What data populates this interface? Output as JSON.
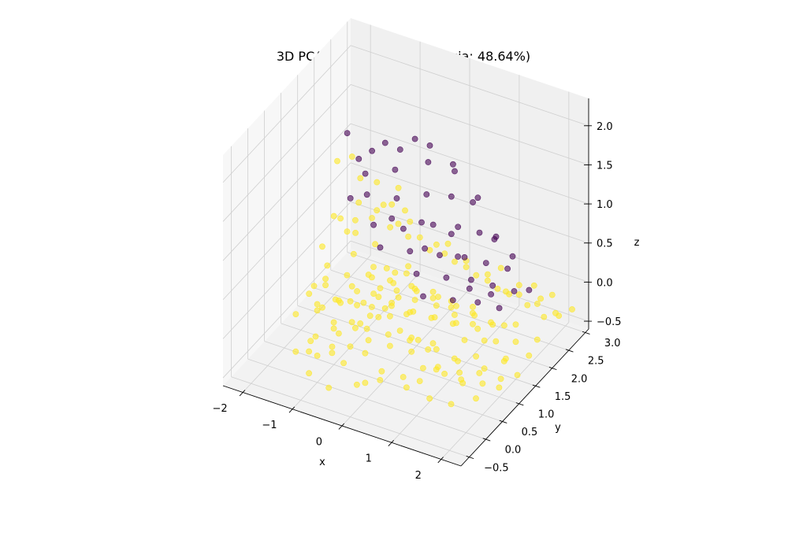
{
  "chart_data": {
    "type": "scatter",
    "projection": "3d",
    "title": "3D PCA (Wyjaśniona wariancja: 48.64%)",
    "xlabel": "x",
    "ylabel": "y",
    "zlabel": "z",
    "xlim": [
      -2.4,
      2.4
    ],
    "ylim": [
      -0.75,
      3.1
    ],
    "zlim": [
      -0.6,
      2.35
    ],
    "x_ticks": [
      {
        "value": -2,
        "label": "−2"
      },
      {
        "value": -1,
        "label": "−1"
      },
      {
        "value": 0,
        "label": "0"
      },
      {
        "value": 1,
        "label": "1"
      },
      {
        "value": 2,
        "label": "2"
      }
    ],
    "y_ticks": [
      {
        "value": -0.5,
        "label": "−0.5"
      },
      {
        "value": 0.0,
        "label": "0.0"
      },
      {
        "value": 0.5,
        "label": "0.5"
      },
      {
        "value": 1.0,
        "label": "1.0"
      },
      {
        "value": 1.5,
        "label": "1.5"
      },
      {
        "value": 2.0,
        "label": "2.0"
      },
      {
        "value": 2.5,
        "label": "2.5"
      },
      {
        "value": 3.0,
        "label": "3.0"
      }
    ],
    "z_ticks": [
      {
        "value": -0.5,
        "label": "−0.5"
      },
      {
        "value": 0.0,
        "label": "0.0"
      },
      {
        "value": 0.5,
        "label": "0.5"
      },
      {
        "value": 1.0,
        "label": "1.0"
      },
      {
        "value": 1.5,
        "label": "1.5"
      },
      {
        "value": 2.0,
        "label": "2.0"
      }
    ],
    "grid": true,
    "legend": "none",
    "colormap": "viridis",
    "series": [
      {
        "color": "#fde725",
        "opacity": 0.6,
        "points": [
          [
            -0.8,
            -0.5,
            0.2
          ],
          [
            -0.5,
            -0.3,
            0.1
          ],
          [
            -0.2,
            -0.4,
            0.0
          ],
          [
            0.1,
            -0.2,
            0.1
          ],
          [
            0.3,
            -0.5,
            -0.1
          ],
          [
            0.5,
            -0.3,
            0.0
          ],
          [
            0.8,
            -0.1,
            -0.1
          ],
          [
            1.0,
            0.1,
            -0.2
          ],
          [
            1.2,
            0.3,
            -0.1
          ],
          [
            0.9,
            0.5,
            0.0
          ],
          [
            0.6,
            0.4,
            0.1
          ],
          [
            0.3,
            0.2,
            0.2
          ],
          [
            0.0,
            0.0,
            0.3
          ],
          [
            -0.3,
            0.1,
            0.2
          ],
          [
            -0.6,
            -0.1,
            0.3
          ],
          [
            -0.9,
            -0.2,
            0.1
          ],
          [
            -0.7,
            0.2,
            0.0
          ],
          [
            -0.4,
            0.4,
            0.1
          ],
          [
            -0.1,
            0.5,
            0.2
          ],
          [
            0.2,
            0.7,
            0.0
          ],
          [
            0.5,
            0.8,
            -0.1
          ],
          [
            0.8,
            0.9,
            -0.2
          ],
          [
            1.1,
            1.0,
            -0.3
          ],
          [
            1.3,
            0.8,
            -0.2
          ],
          [
            1.5,
            0.6,
            -0.3
          ],
          [
            1.4,
            1.2,
            -0.3
          ],
          [
            1.1,
            1.3,
            -0.2
          ],
          [
            0.8,
            1.4,
            -0.1
          ],
          [
            0.5,
            1.2,
            0.0
          ],
          [
            0.2,
            1.0,
            0.1
          ],
          [
            -0.1,
            0.9,
            0.2
          ],
          [
            -0.4,
            0.8,
            0.3
          ],
          [
            -0.6,
            0.6,
            0.2
          ],
          [
            -0.9,
            0.4,
            0.3
          ],
          [
            -1.0,
            0.0,
            0.4
          ],
          [
            -0.8,
            -0.3,
            0.5
          ],
          [
            -0.5,
            -0.1,
            0.6
          ],
          [
            -0.2,
            0.2,
            0.5
          ],
          [
            0.1,
            0.4,
            0.4
          ],
          [
            0.4,
            0.6,
            0.3
          ],
          [
            0.7,
            0.3,
            0.2
          ],
          [
            1.0,
            0.5,
            0.1
          ],
          [
            1.3,
            0.2,
            0.0
          ],
          [
            1.6,
            0.4,
            -0.1
          ],
          [
            1.8,
            0.7,
            -0.2
          ],
          [
            1.7,
            1.0,
            -0.3
          ],
          [
            1.9,
            1.3,
            -0.3
          ],
          [
            1.6,
            1.5,
            -0.2
          ],
          [
            1.3,
            1.6,
            -0.3
          ],
          [
            1.0,
            1.7,
            -0.2
          ],
          [
            0.7,
            1.6,
            -0.1
          ],
          [
            0.4,
            1.5,
            0.0
          ],
          [
            0.1,
            1.3,
            0.1
          ],
          [
            -0.2,
            1.2,
            0.2
          ],
          [
            -0.5,
            1.1,
            0.1
          ],
          [
            -0.8,
            0.9,
            0.2
          ],
          [
            -1.0,
            0.7,
            0.1
          ],
          [
            -1.1,
            0.3,
            0.2
          ],
          [
            -0.9,
            -0.4,
            0.0
          ],
          [
            -0.6,
            -0.6,
            0.1
          ],
          [
            -0.3,
            -0.6,
            0.2
          ],
          [
            0.0,
            -0.5,
            0.3
          ],
          [
            0.3,
            -0.4,
            0.4
          ],
          [
            0.6,
            -0.2,
            0.3
          ],
          [
            0.9,
            0.0,
            0.2
          ],
          [
            1.2,
            -0.1,
            0.1
          ],
          [
            1.5,
            0.1,
            0.0
          ],
          [
            1.8,
            0.2,
            -0.1
          ],
          [
            2.0,
            0.5,
            -0.2
          ],
          [
            2.1,
            0.9,
            -0.3
          ],
          [
            2.0,
            1.2,
            -0.2
          ],
          [
            1.8,
            1.8,
            -0.3
          ],
          [
            1.5,
            1.9,
            -0.2
          ],
          [
            1.2,
            2.0,
            -0.3
          ],
          [
            0.9,
            1.9,
            -0.2
          ],
          [
            0.6,
            1.8,
            -0.1
          ],
          [
            0.3,
            1.7,
            0.0
          ],
          [
            0.0,
            1.5,
            0.1
          ],
          [
            -0.3,
            1.4,
            0.0
          ],
          [
            -0.6,
            1.3,
            0.1
          ],
          [
            -0.2,
            -0.2,
            0.7
          ],
          [
            0.1,
            0.0,
            0.6
          ],
          [
            0.4,
            0.1,
            0.5
          ],
          [
            -0.5,
            0.3,
            0.6
          ],
          [
            -0.3,
            0.5,
            0.7
          ],
          [
            0.0,
            0.7,
            0.6
          ],
          [
            0.3,
            0.9,
            0.5
          ],
          [
            0.6,
            1.1,
            0.4
          ],
          [
            0.9,
            1.2,
            0.3
          ],
          [
            1.2,
            1.4,
            0.2
          ],
          [
            -0.7,
            -0.2,
            0.8
          ],
          [
            -0.4,
            0.0,
            0.9
          ],
          [
            -0.1,
            0.3,
            0.8
          ],
          [
            0.2,
            0.5,
            0.7
          ],
          [
            0.5,
            0.7,
            0.6
          ],
          [
            0.8,
            0.8,
            0.5
          ],
          [
            1.1,
            0.9,
            0.4
          ],
          [
            1.4,
            1.1,
            0.3
          ],
          [
            1.7,
            1.2,
            0.2
          ],
          [
            2.0,
            1.5,
            0.1
          ],
          [
            -0.9,
            0.1,
            0.7
          ],
          [
            -0.6,
            0.5,
            0.9
          ],
          [
            -0.3,
            0.7,
            1.0
          ],
          [
            0.0,
            0.2,
            1.0
          ],
          [
            0.3,
            0.4,
            0.9
          ],
          [
            -0.8,
            0.6,
            1.1
          ],
          [
            -0.5,
            0.9,
            1.2
          ],
          [
            -0.2,
            1.0,
            1.1
          ],
          [
            0.1,
            1.1,
            1.0
          ],
          [
            0.4,
            1.3,
            0.8
          ],
          [
            -1.0,
            0.5,
            1.3
          ],
          [
            -0.7,
            0.8,
            1.4
          ],
          [
            -0.4,
            1.1,
            1.3
          ],
          [
            -0.1,
            1.3,
            1.2
          ],
          [
            -0.6,
            1.2,
            1.5
          ],
          [
            -0.3,
            1.4,
            1.4
          ],
          [
            -0.8,
            1.0,
            1.6
          ],
          [
            -0.9,
            0.9,
            1.9
          ],
          [
            -0.5,
            1.5,
            1.1
          ],
          [
            -0.2,
            1.6,
            0.9
          ],
          [
            0.7,
            1.4,
            0.9
          ],
          [
            1.0,
            1.5,
            0.7
          ],
          [
            1.3,
            1.7,
            0.5
          ],
          [
            1.6,
            1.8,
            0.3
          ],
          [
            1.9,
            2.0,
            0.1
          ],
          [
            2.1,
            2.2,
            -0.1
          ],
          [
            2.2,
            2.5,
            -0.2
          ],
          [
            1.9,
            2.4,
            0.0
          ],
          [
            1.6,
            2.2,
            0.2
          ],
          [
            1.3,
            2.1,
            0.4
          ],
          [
            0.2,
            1.8,
            0.6
          ],
          [
            0.5,
            1.9,
            0.4
          ],
          [
            0.8,
            2.1,
            0.2
          ],
          [
            1.1,
            2.3,
            0.0
          ],
          [
            1.4,
            2.5,
            -0.1
          ],
          [
            1.7,
            2.6,
            -0.2
          ],
          [
            2.0,
            2.7,
            -0.3
          ],
          [
            2.2,
            2.9,
            -0.3
          ],
          [
            1.8,
            2.9,
            -0.2
          ],
          [
            1.5,
            2.8,
            -0.1
          ],
          [
            -1.2,
            0.2,
            0.5
          ],
          [
            -1.3,
            0.6,
            0.8
          ],
          [
            -1.2,
            1.0,
            1.0
          ],
          [
            -1.1,
            1.3,
            0.7
          ],
          [
            -1.4,
            0.9,
            0.4
          ],
          [
            -1.5,
            0.5,
            0.2
          ],
          [
            -1.3,
            -0.2,
            0.3
          ],
          [
            -1.1,
            -0.5,
            0.0
          ],
          [
            -0.7,
            -0.7,
            -0.1
          ],
          [
            -0.3,
            -0.7,
            -0.2
          ],
          [
            0.2,
            -0.6,
            -0.1
          ],
          [
            0.6,
            -0.5,
            0.0
          ],
          [
            1.0,
            -0.3,
            -0.1
          ],
          [
            1.4,
            -0.2,
            -0.2
          ],
          [
            1.7,
            0.0,
            -0.3
          ],
          [
            2.0,
            0.3,
            -0.3
          ],
          [
            2.2,
            0.7,
            -0.3
          ],
          [
            2.3,
            1.1,
            -0.3
          ],
          [
            2.2,
            1.6,
            -0.3
          ],
          [
            2.1,
            2.0,
            -0.3
          ],
          [
            -0.4,
            -0.4,
            0.4
          ],
          [
            -0.1,
            -0.3,
            0.5
          ],
          [
            0.2,
            -0.2,
            0.6
          ],
          [
            0.5,
            0.0,
            0.7
          ],
          [
            0.8,
            0.2,
            0.6
          ],
          [
            1.1,
            0.4,
            0.5
          ],
          [
            1.4,
            0.6,
            0.4
          ],
          [
            1.7,
            0.8,
            0.3
          ],
          [
            0.0,
            0.6,
            0.8
          ],
          [
            0.3,
            0.8,
            0.8
          ],
          [
            -1.4,
            1.2,
            1.6
          ],
          [
            0.9,
            1.0,
            1.0
          ],
          [
            1.2,
            1.2,
            0.8
          ],
          [
            0.6,
            0.3,
            1.0
          ],
          [
            1.5,
            1.4,
            0.6
          ],
          [
            1.8,
            1.6,
            0.4
          ],
          [
            0.4,
            1.0,
            1.1
          ],
          [
            0.1,
            0.8,
            1.3
          ],
          [
            -0.2,
            0.6,
            1.5
          ],
          [
            -0.5,
            0.4,
            1.4
          ]
        ]
      },
      {
        "color": "#440154",
        "opacity": 0.6,
        "points": [
          [
            -1.2,
            1.2,
            2.0
          ],
          [
            -0.7,
            1.6,
            1.8
          ],
          [
            -0.3,
            1.9,
            1.8
          ],
          [
            -0.9,
            1.3,
            1.5
          ],
          [
            -0.5,
            1.6,
            1.5
          ],
          [
            -0.1,
            2.0,
            1.5
          ],
          [
            0.2,
            2.3,
            1.4
          ],
          [
            -0.8,
            1.2,
            1.3
          ],
          [
            -0.4,
            1.5,
            1.2
          ],
          [
            0.0,
            1.8,
            1.2
          ],
          [
            0.3,
            2.1,
            1.1
          ],
          [
            0.6,
            2.3,
            1.0
          ],
          [
            -0.6,
            1.1,
            1.0
          ],
          [
            -0.2,
            1.4,
            0.9
          ],
          [
            0.2,
            1.7,
            0.9
          ],
          [
            0.5,
            2.0,
            0.8
          ],
          [
            0.8,
            2.2,
            0.7
          ],
          [
            1.0,
            2.4,
            0.6
          ],
          [
            -0.4,
            1.0,
            0.8
          ],
          [
            0.0,
            1.3,
            0.7
          ],
          [
            0.4,
            1.6,
            0.6
          ],
          [
            0.7,
            1.9,
            0.5
          ],
          [
            1.0,
            2.1,
            0.4
          ],
          [
            1.3,
            2.3,
            0.3
          ],
          [
            0.2,
            1.2,
            0.5
          ],
          [
            0.6,
            1.5,
            0.4
          ],
          [
            0.9,
            1.8,
            0.3
          ],
          [
            1.2,
            2.0,
            0.2
          ],
          [
            1.5,
            2.2,
            0.1
          ],
          [
            0.4,
            1.1,
            0.3
          ],
          [
            0.8,
            1.4,
            0.2
          ],
          [
            1.1,
            1.7,
            0.1
          ],
          [
            1.4,
            1.9,
            0.0
          ],
          [
            -1.0,
            1.0,
            1.3
          ],
          [
            -0.9,
            1.5,
            1.7
          ],
          [
            -0.6,
            1.9,
            1.6
          ],
          [
            -0.2,
            2.2,
            1.6
          ],
          [
            -1.1,
            1.4,
            1.6
          ],
          [
            0.1,
            2.5,
            1.2
          ],
          [
            0.5,
            2.6,
            0.9
          ],
          [
            -0.3,
            1.2,
            1.1
          ],
          [
            0.1,
            1.5,
            1.0
          ],
          [
            0.5,
            1.8,
            0.8
          ],
          [
            0.9,
            2.5,
            0.5
          ],
          [
            1.2,
            2.6,
            0.3
          ],
          [
            1.6,
            2.5,
            0.0
          ],
          [
            0.3,
            1.3,
            0.8
          ],
          [
            0.7,
            1.7,
            0.6
          ],
          [
            1.0,
            1.6,
            0.3
          ],
          [
            1.3,
            1.8,
            0.2
          ]
        ]
      }
    ]
  }
}
